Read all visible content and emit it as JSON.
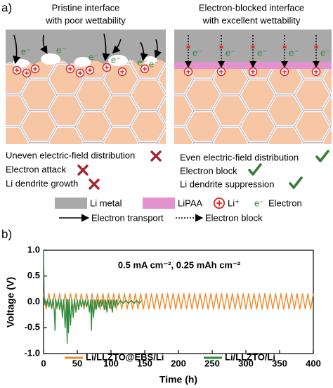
{
  "panel_a": {
    "label": "a)",
    "left": {
      "title": [
        "Pristine interface",
        "with poor wettability"
      ],
      "notes": [
        "Uneven electric-field distribution",
        "Electron attack",
        "Li dendrite growth"
      ]
    },
    "right": {
      "title": [
        "Electron-blocked interface",
        "with excellent wettability"
      ],
      "notes": [
        "Even electric-field distribution",
        "Electron block",
        "Li dendrite suppression"
      ]
    },
    "electron_symbol": "e⁻",
    "legend": {
      "li_metal": "Li metal",
      "lipaa": "LiPAA",
      "li_ion": "Li⁺",
      "electron_symbol": "e⁻",
      "electron": "Electron",
      "electron_transport": "Electron transport",
      "electron_block": "Electron block"
    }
  },
  "chart_data": {
    "type": "line",
    "label": "b)",
    "annotation": "0.5 mA cm⁻², 0.25 mAh cm⁻²",
    "xlabel": "Time (h)",
    "ylabel": "Voltage (V)",
    "xlim": [
      0,
      400
    ],
    "ylim": [
      -1.0,
      1.0
    ],
    "xticks": [
      0,
      50,
      100,
      150,
      200,
      250,
      300,
      350,
      400
    ],
    "yticks": [
      {
        "value": -1.0,
        "label": "-1.0"
      },
      -0.5,
      {
        "value": 0.0,
        "label": "0.0"
      },
      0.5,
      {
        "value": 1.0,
        "label": "1.0"
      }
    ],
    "series": [
      {
        "name": "Li/LLZTO@EBS/Li",
        "color": "#f0892a",
        "x": [
          0,
          4,
          8,
          12,
          16,
          20,
          24,
          28,
          32,
          36,
          40,
          44,
          48,
          52,
          56,
          60,
          64,
          68,
          72,
          76,
          80,
          84,
          88,
          92,
          96,
          100,
          104,
          108,
          112,
          116,
          120,
          124,
          128,
          132,
          136,
          140,
          144,
          148,
          152,
          156,
          160,
          164,
          168,
          172,
          176,
          180,
          184,
          188,
          192,
          196,
          200,
          204,
          208,
          212,
          216,
          220,
          224,
          228,
          232,
          236,
          240,
          244,
          248,
          252,
          256,
          260,
          264,
          268,
          272,
          276,
          280,
          284,
          288,
          292,
          296,
          300,
          304,
          308,
          312,
          316,
          320,
          324,
          328,
          332,
          336,
          340,
          344,
          348,
          352,
          356,
          360,
          364,
          368,
          372,
          376,
          380,
          384,
          388,
          392,
          396,
          400
        ],
        "values": [
          0.16,
          -0.14,
          0.16,
          -0.14,
          0.16,
          -0.14,
          0.16,
          -0.14,
          0.16,
          -0.14,
          0.16,
          -0.14,
          0.16,
          -0.14,
          0.16,
          -0.14,
          0.16,
          -0.14,
          0.16,
          -0.14,
          0.16,
          -0.14,
          0.16,
          -0.14,
          0.16,
          -0.14,
          0.16,
          -0.14,
          0.16,
          -0.14,
          0.16,
          -0.14,
          0.16,
          -0.14,
          0.16,
          -0.14,
          0.16,
          -0.14,
          0.16,
          -0.14,
          0.16,
          -0.14,
          0.16,
          -0.14,
          0.16,
          -0.14,
          0.16,
          -0.14,
          0.16,
          -0.14,
          0.16,
          -0.14,
          0.16,
          -0.14,
          0.16,
          -0.14,
          0.16,
          -0.14,
          0.16,
          -0.14,
          0.16,
          -0.14,
          0.16,
          -0.14,
          0.16,
          -0.14,
          0.16,
          -0.14,
          0.16,
          -0.14,
          0.16,
          -0.14,
          0.16,
          -0.14,
          0.16,
          -0.14,
          0.16,
          -0.14,
          0.16,
          -0.14,
          0.16,
          -0.14,
          0.16,
          -0.14,
          0.16,
          -0.14,
          0.16,
          -0.14,
          0.16,
          -0.14,
          0.16,
          -0.14,
          0.16,
          -0.14,
          0.16,
          -0.14,
          0.16,
          -0.14,
          0.16,
          -0.14,
          0.16
        ]
      },
      {
        "name": "Li/LLZTO/Li",
        "color": "#2e8b3a",
        "x": [
          0,
          1,
          2,
          4,
          6,
          8,
          10,
          12,
          14,
          16,
          17,
          18,
          20,
          22,
          24,
          26,
          28,
          30,
          32,
          34,
          35,
          36,
          37,
          38,
          40,
          42,
          44,
          46,
          48,
          50,
          52,
          54,
          56,
          58,
          60,
          62,
          64,
          66,
          68,
          70,
          71,
          72,
          74,
          76,
          78,
          80,
          82,
          84,
          86,
          88,
          90,
          92,
          94,
          96,
          98,
          100,
          102,
          104,
          106,
          108,
          110,
          114,
          118,
          122,
          126,
          130,
          134,
          138,
          142,
          145
        ],
        "values": [
          1.0,
          -0.05,
          0.05,
          -0.08,
          0.05,
          -0.1,
          0.05,
          -0.12,
          0.06,
          -0.2,
          -0.55,
          0.05,
          -0.1,
          0.05,
          -0.15,
          0.05,
          -0.3,
          0.05,
          -0.5,
          0.04,
          -0.8,
          0.05,
          -0.6,
          0.05,
          -0.45,
          0.05,
          -0.3,
          0.05,
          -0.2,
          0.04,
          -0.15,
          0.04,
          -0.1,
          0.04,
          -0.08,
          0.04,
          -0.1,
          0.04,
          -0.2,
          0.04,
          -0.55,
          0.04,
          -0.3,
          0.04,
          -0.15,
          0.04,
          -0.1,
          0.04,
          -0.08,
          0.04,
          -0.15,
          0.04,
          -0.2,
          0.04,
          -0.12,
          0.04,
          -0.2,
          0.04,
          -0.1,
          0.04,
          -0.06,
          0.03,
          -0.03,
          0.03,
          -0.03,
          0.03,
          -0.03,
          0.03,
          -0.03,
          0.02
        ]
      }
    ]
  }
}
